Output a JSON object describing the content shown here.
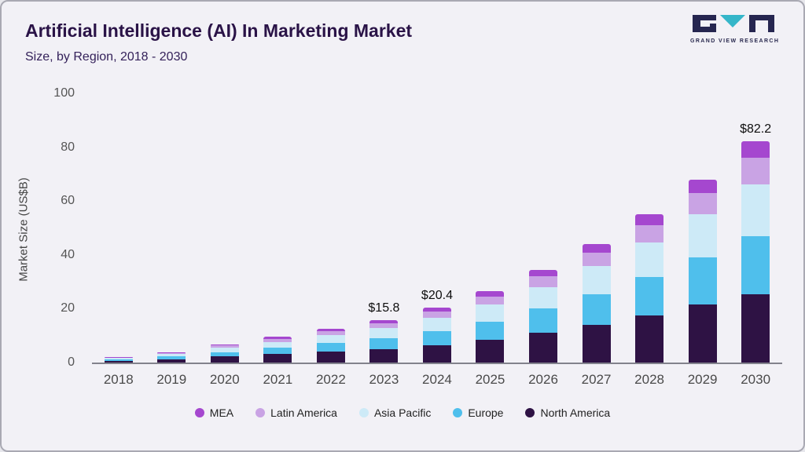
{
  "header": {
    "title": "Artificial Intelligence (AI) In Marketing Market",
    "subtitle": "Size, by Region, 2018 - 2030",
    "logo_text": "GRAND VIEW RESEARCH"
  },
  "chart_data": {
    "type": "bar",
    "stacked": true,
    "title": "Artificial Intelligence (AI) In Marketing Market",
    "subtitle": "Size, by Region, 2018 - 2030",
    "xlabel": "",
    "ylabel": "Market Size (US$B)",
    "ylim": [
      0,
      100
    ],
    "yticks": [
      0,
      20,
      40,
      60,
      80,
      100
    ],
    "grid": false,
    "legend_position": "bottom",
    "categories": [
      "2018",
      "2019",
      "2020",
      "2021",
      "2022",
      "2023",
      "2024",
      "2025",
      "2026",
      "2027",
      "2028",
      "2029",
      "2030"
    ],
    "series": [
      {
        "name": "North America",
        "color": "#2e1244",
        "values": [
          0.7,
          1.3,
          2.2,
          3.1,
          4.0,
          5.0,
          6.5,
          8.5,
          11.0,
          14.0,
          17.5,
          21.5,
          25.5
        ]
      },
      {
        "name": "Europe",
        "color": "#4fbfec",
        "values": [
          0.55,
          1.0,
          1.7,
          2.4,
          3.2,
          4.1,
          5.2,
          6.8,
          9.0,
          11.5,
          14.3,
          17.7,
          21.5
        ]
      },
      {
        "name": "Asia Pacific",
        "color": "#cdeaf7",
        "values": [
          0.45,
          0.9,
          1.6,
          2.2,
          2.9,
          3.7,
          4.8,
          6.2,
          8.0,
          10.3,
          12.8,
          15.8,
          19.2
        ]
      },
      {
        "name": "Latin America",
        "color": "#c9a3e4",
        "values": [
          0.2,
          0.45,
          0.8,
          1.1,
          1.5,
          1.9,
          2.4,
          3.1,
          4.0,
          5.0,
          6.4,
          8.0,
          9.8
        ]
      },
      {
        "name": "MEA",
        "color": "#a547cf",
        "values": [
          0.15,
          0.3,
          0.5,
          0.7,
          0.9,
          1.1,
          1.5,
          1.9,
          2.5,
          3.2,
          4.0,
          5.0,
          6.2
        ]
      }
    ],
    "totals": [
      2.05,
      3.95,
      6.8,
      9.5,
      12.5,
      15.8,
      20.4,
      26.5,
      34.5,
      44.0,
      55.0,
      68.0,
      82.2
    ],
    "annotations": [
      {
        "category": "2023",
        "label": "$15.8"
      },
      {
        "category": "2024",
        "label": "$20.4"
      },
      {
        "category": "2030",
        "label": "$82.2"
      }
    ],
    "legend": [
      {
        "label": "MEA",
        "color": "#a547cf"
      },
      {
        "label": "Latin America",
        "color": "#c9a3e4"
      },
      {
        "label": "Asia Pacific",
        "color": "#cdeaf7"
      },
      {
        "label": "Europe",
        "color": "#4fbfec"
      },
      {
        "label": "North America",
        "color": "#2e1244"
      }
    ]
  }
}
